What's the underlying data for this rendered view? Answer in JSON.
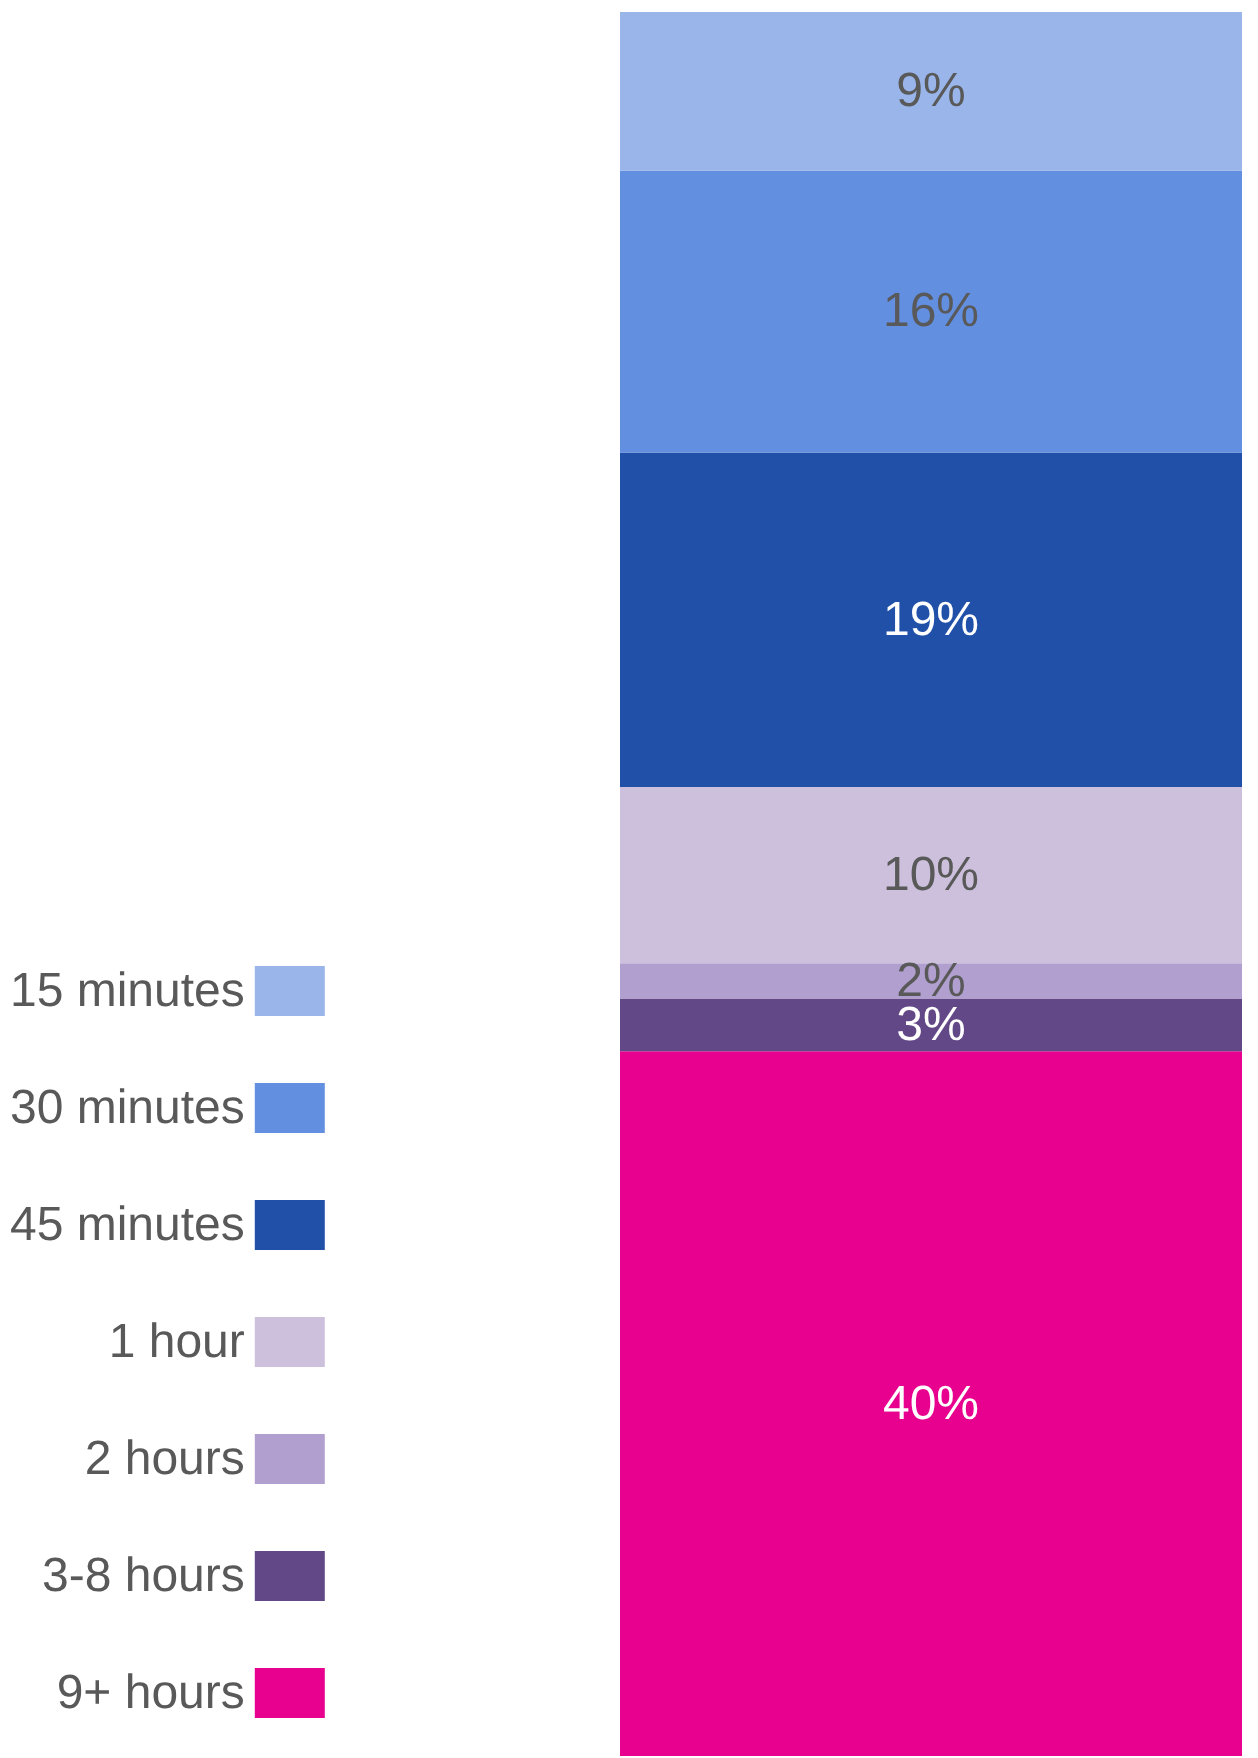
{
  "chart_data": {
    "type": "bar",
    "stacked": true,
    "categories": [
      null
    ],
    "legend": "left",
    "tick_labels": false,
    "series": [
      {
        "name": "9+ hours",
        "color": "#e8008f",
        "values": [
          40
        ],
        "value_labels": [
          "40%"
        ]
      },
      {
        "name": "3-8 hours",
        "color": "#634887",
        "values": [
          3
        ],
        "value_labels": [
          "3%"
        ]
      },
      {
        "name": "2 hours",
        "color": "#b19fcf",
        "values": [
          2
        ],
        "value_labels": [
          "2%"
        ]
      },
      {
        "name": "1 hour",
        "color": "#cdc0dd",
        "values": [
          10
        ],
        "value_labels": [
          "10%"
        ]
      },
      {
        "name": "45 minutes",
        "color": "#2150a8",
        "values": [
          19
        ],
        "value_labels": [
          "19%"
        ]
      },
      {
        "name": "30 minutes",
        "color": "#638fe0",
        "values": [
          16
        ],
        "value_labels": [
          "16%"
        ]
      },
      {
        "name": "15 minutes",
        "color": "#9ab5ea",
        "values": [
          9
        ],
        "value_labels": [
          "9%"
        ]
      }
    ]
  }
}
